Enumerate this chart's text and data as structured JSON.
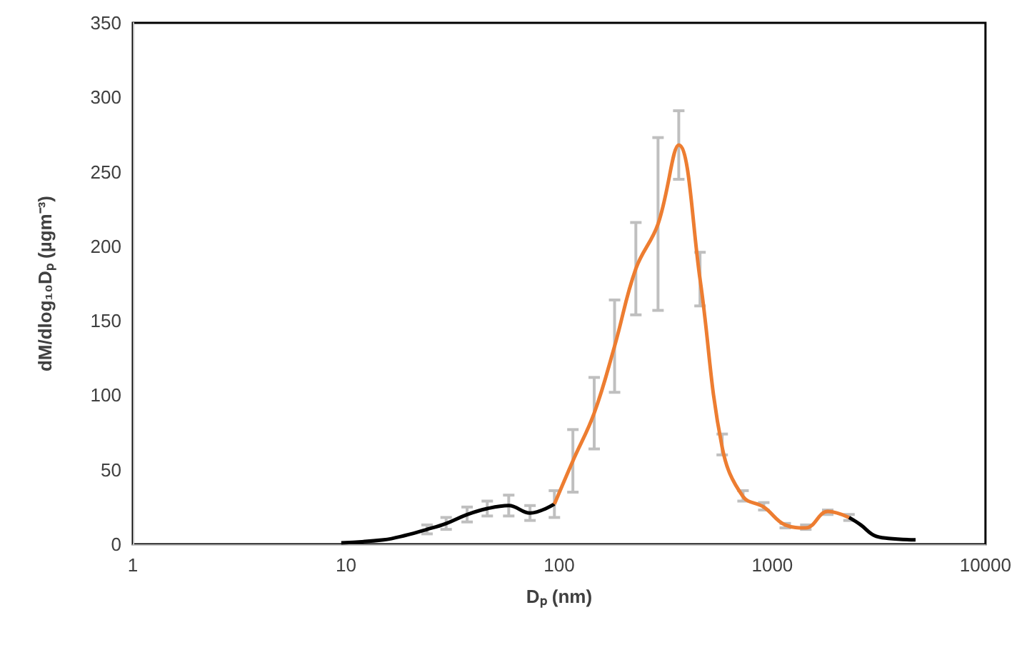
{
  "chart_data": {
    "type": "line",
    "xlabel": "Dₚ (nm)",
    "ylabel": "dM/dlog₁₀Dₚ (µgm⁻³)",
    "log": "x",
    "xlim": [
      1,
      10000
    ],
    "xticks": [
      1,
      10,
      100,
      1000,
      10000
    ],
    "ylim": [
      0,
      350
    ],
    "yticks": [
      0,
      50,
      100,
      150,
      200,
      250,
      300,
      350
    ],
    "grid": false,
    "marker": "none",
    "line_style": "solid",
    "series": [
      {
        "color": "#000000",
        "x": [
          9.5,
          15,
          19,
          24,
          29.5,
          37,
          46,
          58,
          73,
          95,
          500,
          2290,
          2600,
          3000,
          3500,
          4700
        ],
        "values": [
          1,
          3,
          6,
          10,
          14,
          20,
          24,
          26,
          21,
          27,
          null,
          18,
          13,
          6,
          4,
          3
        ],
        "errors": [
          null,
          null,
          null,
          3,
          4,
          5,
          5,
          7,
          5,
          9,
          null,
          null,
          null,
          null,
          null,
          null
        ]
      },
      {
        "color": "#ed7d31",
        "x": [
          95,
          116,
          146,
          182,
          229,
          291,
          364,
          458,
          582,
          729,
          912,
          1150,
          1436,
          1820,
          2290
        ],
        "values": [
          27,
          56,
          88,
          133,
          185,
          215,
          268,
          178,
          65,
          32,
          25,
          13,
          11,
          22,
          18
        ],
        "errors": [
          null,
          21,
          24,
          31,
          31,
          58,
          [
            245,
            291
          ],
          [
            160,
            196
          ],
          [
            60,
            74
          ],
          [
            29,
            36
          ],
          [
            23,
            28
          ],
          [
            11,
            14
          ],
          [
            10,
            13
          ],
          [
            20,
            23
          ],
          [
            16,
            20
          ]
        ]
      }
    ]
  }
}
